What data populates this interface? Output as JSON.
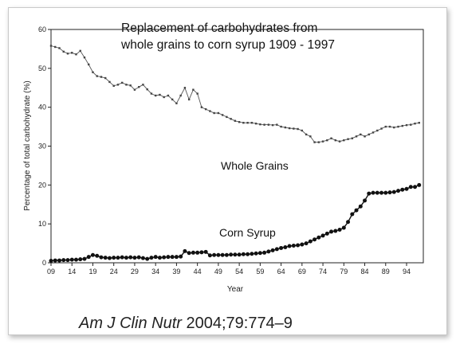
{
  "chart_data": {
    "type": "line",
    "title_lines": [
      "Replacement of carbohydrates from",
      "whole grains to corn syrup 1909 - 1997"
    ],
    "xlabel": "Year",
    "ylabel": "Percentage of total carbohydrate (%)",
    "xlim": [
      1909,
      1998
    ],
    "ylim": [
      0,
      60
    ],
    "x_ticks": [
      {
        "value": 1909,
        "label": "09"
      },
      {
        "value": 1914,
        "label": "14"
      },
      {
        "value": 1919,
        "label": "19"
      },
      {
        "value": 1924,
        "label": "24"
      },
      {
        "value": 1929,
        "label": "29"
      },
      {
        "value": 1934,
        "label": "34"
      },
      {
        "value": 1939,
        "label": "39"
      },
      {
        "value": 1944,
        "label": "44"
      },
      {
        "value": 1949,
        "label": "49"
      },
      {
        "value": 1954,
        "label": "54"
      },
      {
        "value": 1959,
        "label": "59"
      },
      {
        "value": 1964,
        "label": "64"
      },
      {
        "value": 1969,
        "label": "69"
      },
      {
        "value": 1974,
        "label": "74"
      },
      {
        "value": 1979,
        "label": "79"
      },
      {
        "value": 1984,
        "label": "84"
      },
      {
        "value": 1989,
        "label": "89"
      },
      {
        "value": 1994,
        "label": "94"
      }
    ],
    "y_ticks": [
      0,
      10,
      20,
      30,
      40,
      50,
      60
    ],
    "grid": false,
    "annotations": [
      "Whole Grains",
      "Corn Syrup"
    ],
    "series": [
      {
        "name": "Whole Grains",
        "marker": "small-square",
        "x": [
          1909,
          1910,
          1911,
          1912,
          1913,
          1914,
          1915,
          1916,
          1917,
          1918,
          1919,
          1920,
          1921,
          1922,
          1923,
          1924,
          1925,
          1926,
          1927,
          1928,
          1929,
          1930,
          1931,
          1932,
          1933,
          1934,
          1935,
          1936,
          1937,
          1938,
          1939,
          1940,
          1941,
          1942,
          1943,
          1944,
          1945,
          1946,
          1947,
          1948,
          1949,
          1950,
          1951,
          1952,
          1953,
          1954,
          1955,
          1956,
          1957,
          1958,
          1959,
          1960,
          1961,
          1962,
          1963,
          1964,
          1965,
          1966,
          1967,
          1968,
          1969,
          1970,
          1971,
          1972,
          1973,
          1974,
          1975,
          1976,
          1977,
          1978,
          1979,
          1980,
          1981,
          1982,
          1983,
          1984,
          1985,
          1986,
          1987,
          1988,
          1989,
          1990,
          1991,
          1992,
          1993,
          1994,
          1995,
          1996,
          1997
        ],
        "y": [
          55.8,
          55.5,
          55.2,
          54.3,
          53.8,
          54.0,
          53.6,
          54.5,
          52.8,
          51.0,
          49.0,
          48.0,
          47.8,
          47.5,
          46.5,
          45.5,
          45.8,
          46.3,
          45.8,
          45.6,
          44.5,
          45.2,
          45.8,
          44.6,
          43.5,
          43.0,
          43.2,
          42.6,
          43.0,
          42.0,
          41.0,
          43.0,
          45.0,
          42.0,
          44.5,
          43.5,
          40.0,
          39.5,
          39.0,
          38.5,
          38.5,
          38.0,
          37.5,
          37.0,
          36.5,
          36.2,
          36.0,
          36.0,
          36.0,
          35.8,
          35.6,
          35.5,
          35.5,
          35.4,
          35.5,
          35.0,
          34.8,
          34.6,
          34.5,
          34.4,
          34.0,
          33.0,
          32.5,
          31.0,
          31.0,
          31.2,
          31.5,
          32.0,
          31.5,
          31.2,
          31.5,
          31.8,
          32.0,
          32.5,
          33.0,
          32.5,
          33.0,
          33.5,
          34.0,
          34.5,
          35.0,
          35.0,
          34.8,
          35.0,
          35.2,
          35.4,
          35.5,
          35.8,
          36.0
        ]
      },
      {
        "name": "Corn Syrup",
        "marker": "filled-circle",
        "x": [
          1909,
          1910,
          1911,
          1912,
          1913,
          1914,
          1915,
          1916,
          1917,
          1918,
          1919,
          1920,
          1921,
          1922,
          1923,
          1924,
          1925,
          1926,
          1927,
          1928,
          1929,
          1930,
          1931,
          1932,
          1933,
          1934,
          1935,
          1936,
          1937,
          1938,
          1939,
          1940,
          1941,
          1942,
          1943,
          1944,
          1945,
          1946,
          1947,
          1948,
          1949,
          1950,
          1951,
          1952,
          1953,
          1954,
          1955,
          1956,
          1957,
          1958,
          1959,
          1960,
          1961,
          1962,
          1963,
          1964,
          1965,
          1966,
          1967,
          1968,
          1969,
          1970,
          1971,
          1972,
          1973,
          1974,
          1975,
          1976,
          1977,
          1978,
          1979,
          1980,
          1981,
          1982,
          1983,
          1984,
          1985,
          1986,
          1987,
          1988,
          1989,
          1990,
          1991,
          1992,
          1993,
          1994,
          1995,
          1996,
          1997
        ],
        "y": [
          0.5,
          0.6,
          0.6,
          0.7,
          0.7,
          0.8,
          0.8,
          0.9,
          1.0,
          1.5,
          2.0,
          1.8,
          1.4,
          1.3,
          1.2,
          1.3,
          1.3,
          1.4,
          1.3,
          1.4,
          1.3,
          1.4,
          1.2,
          1.0,
          1.3,
          1.5,
          1.3,
          1.4,
          1.5,
          1.5,
          1.5,
          1.6,
          3.0,
          2.5,
          2.6,
          2.6,
          2.7,
          2.8,
          1.9,
          2.0,
          2.0,
          2.0,
          2.0,
          2.1,
          2.1,
          2.1,
          2.2,
          2.2,
          2.3,
          2.4,
          2.5,
          2.6,
          2.9,
          3.2,
          3.5,
          3.8,
          4.0,
          4.3,
          4.4,
          4.5,
          4.7,
          5.0,
          5.5,
          6.0,
          6.5,
          7.0,
          7.5,
          8.0,
          8.2,
          8.5,
          9.0,
          10.5,
          12.5,
          13.5,
          14.5,
          16.0,
          17.8,
          18.0,
          18.0,
          18.0,
          18.0,
          18.1,
          18.2,
          18.5,
          18.8,
          19.0,
          19.5,
          19.5,
          20.0
        ]
      }
    ]
  },
  "citation": {
    "journal": "Am J Clin Nutr",
    "details": " 2004;79:774–9"
  }
}
